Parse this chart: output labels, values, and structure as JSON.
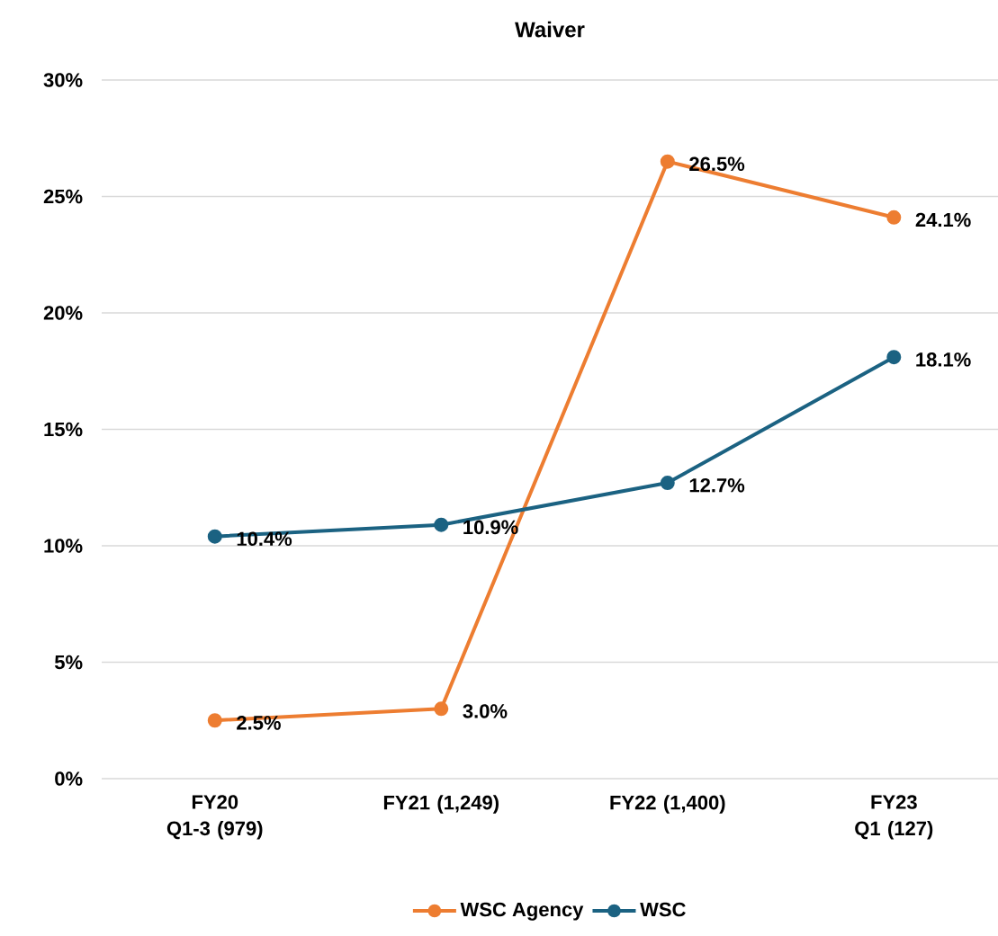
{
  "chart_data": {
    "type": "line",
    "title": "Waiver",
    "categories": [
      "FY20 Q1-3 (979)",
      "FY21 (1,249)",
      "FY22 (1,400)",
      "FY23 Q1 (127)"
    ],
    "series": [
      {
        "name": "WSC Agency",
        "color": "#ed7d31",
        "values": [
          2.5,
          3.0,
          26.5,
          24.1
        ],
        "value_labels": [
          "2.5%",
          "3.0%",
          "26.5%",
          "24.1%"
        ]
      },
      {
        "name": "WSC",
        "color": "#1b6282",
        "values": [
          10.4,
          10.9,
          12.7,
          18.1
        ],
        "value_labels": [
          "10.4%",
          "10.9%",
          "12.7%",
          "18.1%"
        ]
      }
    ],
    "ylim": [
      0,
      30
    ],
    "yticks": [
      {
        "value": 0,
        "label": "0%"
      },
      {
        "value": 5,
        "label": "5%"
      },
      {
        "value": 10,
        "label": "10%"
      },
      {
        "value": 15,
        "label": "15%"
      },
      {
        "value": 20,
        "label": "20%"
      },
      {
        "value": 25,
        "label": "25%"
      },
      {
        "value": 30,
        "label": "30%"
      }
    ],
    "grid": "y",
    "legend": "bottom",
    "marker": "circle",
    "line_style": "solid"
  }
}
